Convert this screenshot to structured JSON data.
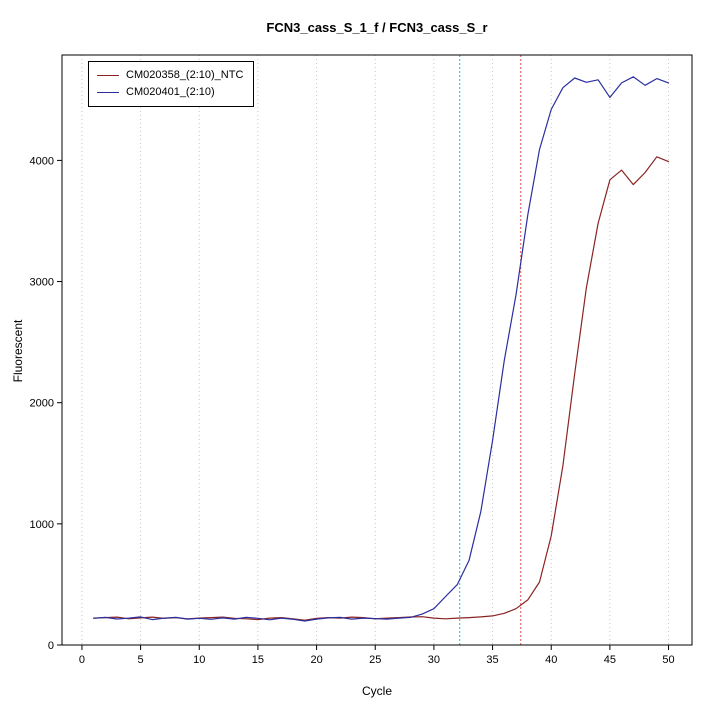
{
  "chart_data": {
    "type": "line",
    "title": "FCN3_cass_S_1_f / FCN3_cass_S_r",
    "xlabel": "Cycle",
    "ylabel": "Fluorescent",
    "xlim": [
      -1.7,
      52.0
    ],
    "ylim": [
      0,
      4870
    ],
    "xticks": [
      0,
      5,
      10,
      15,
      20,
      25,
      30,
      35,
      40,
      45,
      50
    ],
    "yticks": [
      0,
      1000,
      2000,
      3000,
      4000
    ],
    "grid": "vertical dotted gridlines at x ticks",
    "grid_color": "#c8c8c8",
    "legend_position": "top-left",
    "vlines": [
      {
        "x": 32.2,
        "color": "#00cccc",
        "style": "dotted",
        "meaning": "Ct marker (blue sample)"
      },
      {
        "x": 37.4,
        "color": "#dd5555",
        "style": "dotted",
        "meaning": "Ct marker (red sample)"
      }
    ],
    "x": [
      1,
      2,
      3,
      4,
      5,
      6,
      7,
      8,
      9,
      10,
      11,
      12,
      13,
      14,
      15,
      16,
      17,
      18,
      19,
      20,
      21,
      22,
      23,
      24,
      25,
      26,
      27,
      28,
      29,
      30,
      31,
      32,
      33,
      34,
      35,
      36,
      37,
      38,
      39,
      40,
      41,
      42,
      43,
      44,
      45,
      46,
      47,
      48,
      49,
      50
    ],
    "series": [
      {
        "name": "CM020358_(2:10)_NTC",
        "color": "#8b2323",
        "values": [
          222,
          226,
          230,
          216,
          224,
          230,
          220,
          226,
          216,
          222,
          226,
          230,
          220,
          216,
          210,
          222,
          226,
          216,
          205,
          220,
          226,
          222,
          230,
          226,
          216,
          222,
          226,
          231,
          234,
          222,
          216,
          222,
          226,
          232,
          240,
          262,
          300,
          372,
          520,
          900,
          1480,
          2240,
          2950,
          3480,
          3840,
          3920,
          3800,
          3900,
          4030,
          3990
        ]
      },
      {
        "name": "CM020401_(2:10)",
        "color": "#2b2f9e",
        "values": [
          220,
          228,
          215,
          222,
          232,
          210,
          222,
          228,
          214,
          220,
          212,
          224,
          214,
          228,
          220,
          208,
          222,
          212,
          198,
          214,
          224,
          228,
          214,
          222,
          218,
          214,
          222,
          228,
          255,
          300,
          400,
          500,
          700,
          1100,
          1690,
          2350,
          2890,
          3550,
          4090,
          4420,
          4600,
          4680,
          4645,
          4665,
          4520,
          4640,
          4690,
          4620,
          4675,
          4640
        ]
      }
    ]
  }
}
